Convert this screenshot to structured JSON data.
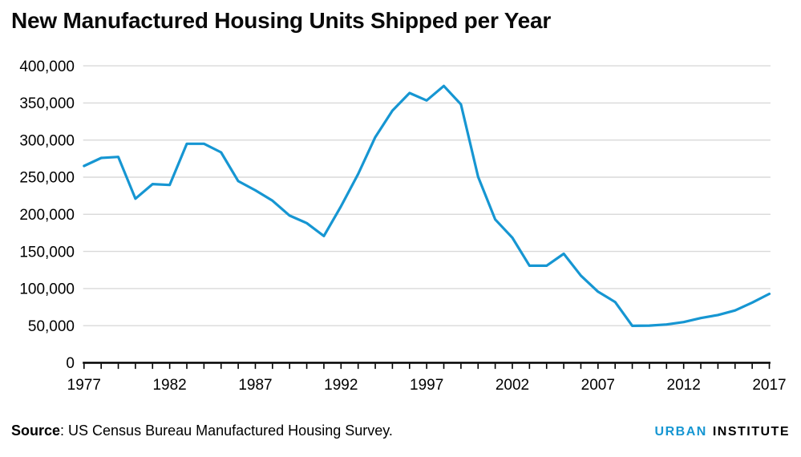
{
  "title": "New Manufactured Housing Units Shipped per Year",
  "footer": {
    "source_label": "Source",
    "source_text": ": US Census Bureau Manufactured Housing Survey.",
    "logo": {
      "urban": "URBAN",
      "institute": "INSTITUTE"
    }
  },
  "colors": {
    "line": "#1696d2",
    "grid": "#d9d9d9",
    "axis": "#000000",
    "text": "#000000",
    "logo_blue": "#1696d2",
    "logo_black": "#000000"
  },
  "chart_data": {
    "type": "line",
    "title": "New Manufactured Housing Units Shipped per Year",
    "xlabel": "",
    "ylabel": "",
    "series_name": "New manufactured housing units shipped per year",
    "x": [
      1977,
      1978,
      1979,
      1980,
      1981,
      1982,
      1983,
      1984,
      1985,
      1986,
      1987,
      1988,
      1989,
      1990,
      1991,
      1992,
      1993,
      1994,
      1995,
      1996,
      1997,
      1998,
      1999,
      2000,
      2001,
      2002,
      2003,
      2004,
      2005,
      2006,
      2007,
      2008,
      2009,
      2010,
      2011,
      2012,
      2013,
      2014,
      2015,
      2016,
      2017
    ],
    "values": [
      265145,
      275943,
      277372,
      221091,
      240714,
      239505,
      295079,
      295078,
      283489,
      244660,
      232340,
      218363,
      198254,
      188172,
      170713,
      210787,
      254276,
      303932,
      339601,
      363345,
      353377,
      372843,
      348075,
      250550,
      193120,
      168491,
      130815,
      130748,
      146881,
      117373,
      95752,
      81889,
      49789,
      50056,
      51618,
      54891,
      60228,
      64334,
      70544,
      81136,
      92902
    ],
    "ylim": [
      0,
      400000
    ],
    "ytick_step": 50000,
    "ytick_labels": [
      "0",
      "50,000",
      "100,000",
      "150,000",
      "200,000",
      "250,000",
      "300,000",
      "350,000",
      "400,000"
    ],
    "xtick_labeled_years": [
      1977,
      1982,
      1987,
      1992,
      1997,
      2002,
      2007,
      2012,
      2017
    ],
    "grid": "horizontal-only",
    "legend": "none",
    "line_color": "#1696d2"
  }
}
